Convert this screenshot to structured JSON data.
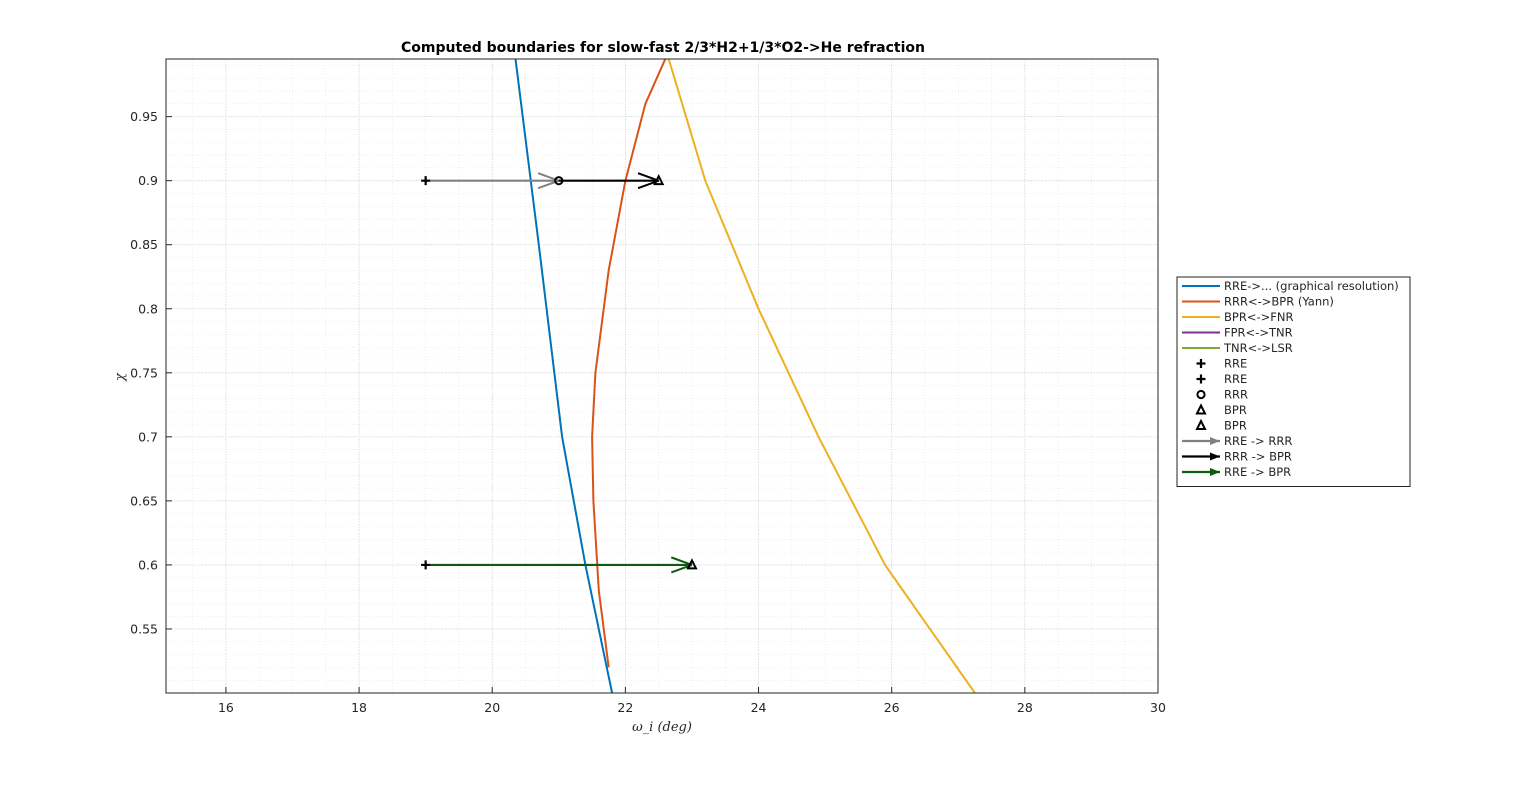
{
  "chart_data": {
    "type": "line",
    "title": "Computed boundaries for slow-fast 2/3*H2+1/3*O2->He refraction",
    "xlabel": "ω_i (deg)",
    "ylabel": "χ",
    "xlim": [
      15.1,
      30
    ],
    "ylim": [
      0.5,
      0.995
    ],
    "xticks": [
      16,
      18,
      20,
      22,
      24,
      26,
      28,
      30
    ],
    "yticks": [
      0.55,
      0.6,
      0.65,
      0.7,
      0.75,
      0.8,
      0.85,
      0.9,
      0.95
    ],
    "grid": "major and minor, dotted",
    "legend_position": "right",
    "series": [
      {
        "name": "RRE->... (graphical resolution)",
        "kind": "line",
        "color": "#0072BD",
        "points": [
          [
            20.35,
            0.995
          ],
          [
            20.7,
            0.85
          ],
          [
            21.05,
            0.7
          ],
          [
            21.4,
            0.6
          ],
          [
            21.8,
            0.5
          ]
        ]
      },
      {
        "name": "RRR<->BPR (Yann)",
        "kind": "line",
        "color": "#D95319",
        "points": [
          [
            22.6,
            0.995
          ],
          [
            22.3,
            0.96
          ],
          [
            22.0,
            0.9
          ],
          [
            21.75,
            0.83
          ],
          [
            21.55,
            0.75
          ],
          [
            21.5,
            0.7
          ],
          [
            21.52,
            0.65
          ],
          [
            21.6,
            0.58
          ],
          [
            21.7,
            0.54
          ],
          [
            21.75,
            0.52
          ]
        ]
      },
      {
        "name": "BPR<->FNR",
        "kind": "line",
        "color": "#EDB120",
        "points": [
          [
            22.65,
            0.995
          ],
          [
            23.2,
            0.9
          ],
          [
            24.0,
            0.8
          ],
          [
            24.9,
            0.7
          ],
          [
            25.9,
            0.6
          ],
          [
            27.25,
            0.5
          ]
        ]
      },
      {
        "name": "FPR<->TNR",
        "kind": "line",
        "color": "#7E2F8E",
        "points": []
      },
      {
        "name": "TNR<->LSR",
        "kind": "line",
        "color": "#77AC30",
        "points": []
      },
      {
        "name": "RRE",
        "kind": "marker",
        "marker": "plus",
        "color": "#000000",
        "points": [
          [
            19.0,
            0.9
          ]
        ]
      },
      {
        "name": "RRE",
        "kind": "marker",
        "marker": "plus",
        "color": "#000000",
        "points": [
          [
            19.0,
            0.6
          ]
        ]
      },
      {
        "name": "RRR",
        "kind": "marker",
        "marker": "circle",
        "color": "#000000",
        "points": [
          [
            21.0,
            0.9
          ]
        ]
      },
      {
        "name": "BPR",
        "kind": "marker",
        "marker": "triangle",
        "color": "#000000",
        "points": [
          [
            22.5,
            0.9
          ]
        ]
      },
      {
        "name": "BPR",
        "kind": "marker",
        "marker": "triangle",
        "color": "#000000",
        "points": [
          [
            23.0,
            0.6
          ]
        ]
      },
      {
        "name": "RRE -> RRR",
        "kind": "arrow",
        "color": "#808080",
        "from": [
          19.0,
          0.9
        ],
        "to": [
          21.0,
          0.9
        ]
      },
      {
        "name": "RRR -> BPR",
        "kind": "arrow",
        "color": "#000000",
        "from": [
          21.0,
          0.9
        ],
        "to": [
          22.5,
          0.9
        ]
      },
      {
        "name": "RRE -> BPR",
        "kind": "arrow",
        "color": "#0F5A0F",
        "from": [
          19.0,
          0.6
        ],
        "to": [
          23.0,
          0.6
        ]
      }
    ]
  }
}
